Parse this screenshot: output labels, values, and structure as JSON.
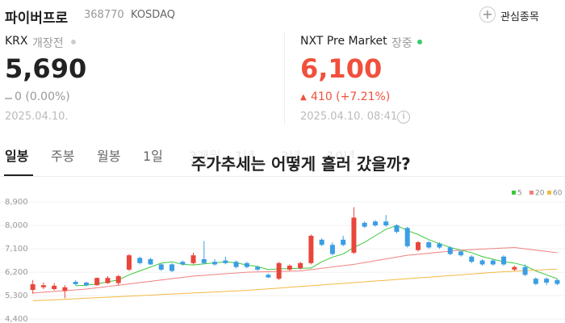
{
  "header": {
    "name": "파이버프로",
    "code": "368770",
    "market": "KOSDAQ",
    "button": "관심종목"
  },
  "krx": {
    "label": "KRX",
    "status": "개장전",
    "price": "5,690",
    "change": "0 (0.00%)",
    "date": "2025.04.10."
  },
  "nxt": {
    "label": "NXT Pre Market",
    "status": "장중",
    "price": "6,100",
    "change": "410 (+7.21%)",
    "date": "2025.04.10. 08:41"
  },
  "tabs": [
    "일봉",
    "주봉",
    "월봉",
    "1일",
    "3개월",
    "1년",
    "3년",
    "10년"
  ],
  "overlay": "주가추세는 어떻게 흘러 갔을까?",
  "chart_data": {
    "type": "candlestick",
    "up_color": "#e8463b",
    "down_color": "#3a9ee4",
    "open": [
      5520,
      5620,
      5550,
      5480,
      5830,
      5800,
      5700,
      5780,
      5780,
      6300,
      6750,
      6700,
      6500,
      6500,
      6600,
      6550,
      6700,
      6600,
      6650,
      6600,
      6550,
      6400,
      6100,
      5950,
      6300,
      6350,
      6550,
      7450,
      7250,
      7450,
      6950,
      8100,
      8150,
      8150,
      8000,
      7900,
      7050,
      7350,
      7300,
      7150,
      7000,
      6800,
      6650,
      6650,
      6800,
      6300,
      6400,
      5950,
      5950,
      5900
    ],
    "high": [
      5900,
      5800,
      5780,
      5700,
      5900,
      5830,
      6000,
      6050,
      6100,
      6900,
      6800,
      6750,
      6550,
      6550,
      6650,
      6950,
      7400,
      6700,
      6800,
      6650,
      6600,
      6450,
      6150,
      6600,
      6500,
      6600,
      7650,
      7500,
      7350,
      7600,
      8700,
      8150,
      8200,
      8400,
      8050,
      7950,
      7400,
      7400,
      7350,
      7200,
      7050,
      6850,
      6700,
      6700,
      6850,
      6450,
      6500,
      6000,
      6000,
      5950
    ],
    "low": [
      5370,
      5550,
      5500,
      5200,
      5700,
      5650,
      5680,
      5750,
      5700,
      6250,
      6500,
      6480,
      6250,
      6200,
      6450,
      6500,
      6500,
      6450,
      6500,
      6350,
      6350,
      6250,
      5980,
      5900,
      6250,
      6300,
      6500,
      7200,
      6850,
      7200,
      6900,
      7900,
      7950,
      7950,
      7700,
      7150,
      7000,
      7100,
      7100,
      6850,
      6800,
      6550,
      6450,
      6450,
      6450,
      6250,
      6050,
      5700,
      5700,
      5700
    ],
    "close": [
      5740,
      5700,
      5680,
      5620,
      5740,
      5700,
      5980,
      5980,
      6050,
      6850,
      6550,
      6500,
      6300,
      6250,
      6500,
      6850,
      6550,
      6500,
      6550,
      6400,
      6400,
      6300,
      6000,
      6550,
      6450,
      6550,
      7600,
      7250,
      6900,
      7250,
      8300,
      7950,
      8000,
      8000,
      7750,
      7200,
      7350,
      7150,
      7150,
      6900,
      6850,
      6600,
      6500,
      6500,
      6500,
      6400,
      6100,
      5750,
      5800,
      5750
    ],
    "series": [
      {
        "name": "5",
        "color": "#3cc93c",
        "values": [
          null,
          null,
          null,
          null,
          5680,
          5700,
          5750,
          5830,
          5900,
          6100,
          6250,
          6400,
          6550,
          6600,
          6500,
          6480,
          6520,
          6560,
          6600,
          6560,
          6480,
          6420,
          6300,
          6330,
          6340,
          6350,
          6360,
          6600,
          6780,
          6900,
          7150,
          7350,
          7600,
          7850,
          8000,
          7800,
          7650,
          7450,
          7300,
          7150,
          7050,
          6950,
          6800,
          6700,
          6600,
          6550,
          6450,
          6250,
          6100,
          5950
        ]
      },
      {
        "name": "20",
        "color": "#f08080",
        "values": [
          5400,
          5430,
          5460,
          5490,
          5520,
          5550,
          5600,
          5650,
          5700,
          5750,
          5800,
          5850,
          5900,
          5950,
          6000,
          6050,
          6080,
          6110,
          6140,
          6170,
          6200,
          6210,
          6220,
          6230,
          6240,
          6250,
          6300,
          6350,
          6400,
          6450,
          6500,
          6570,
          6640,
          6710,
          6780,
          6850,
          6890,
          6930,
          6970,
          7010,
          7050,
          7070,
          7090,
          7110,
          7130,
          7150,
          7100,
          7050,
          7000,
          6950
        ]
      },
      {
        "name": "60",
        "color": "#f5b942",
        "values": [
          5100,
          5120,
          5140,
          5160,
          5180,
          5200,
          5220,
          5240,
          5260,
          5280,
          5300,
          5320,
          5340,
          5360,
          5380,
          5400,
          5420,
          5440,
          5460,
          5480,
          5500,
          5530,
          5560,
          5590,
          5620,
          5650,
          5680,
          5710,
          5740,
          5770,
          5800,
          5830,
          5860,
          5890,
          5920,
          5950,
          5980,
          6010,
          6040,
          6070,
          6100,
          6130,
          6160,
          6190,
          6220,
          6240,
          6260,
          6280,
          6300,
          6320
        ]
      }
    ],
    "ylim": [
      4340,
      9370
    ],
    "yticks": [
      {
        "value": 8900,
        "label": "8,900"
      },
      {
        "value": 8000,
        "label": "8,000"
      },
      {
        "value": 7100,
        "label": "7,100"
      },
      {
        "value": 6200,
        "label": "6,200"
      },
      {
        "value": 5300,
        "label": "5,300"
      },
      {
        "value": 4400,
        "label": "4,400"
      }
    ]
  }
}
